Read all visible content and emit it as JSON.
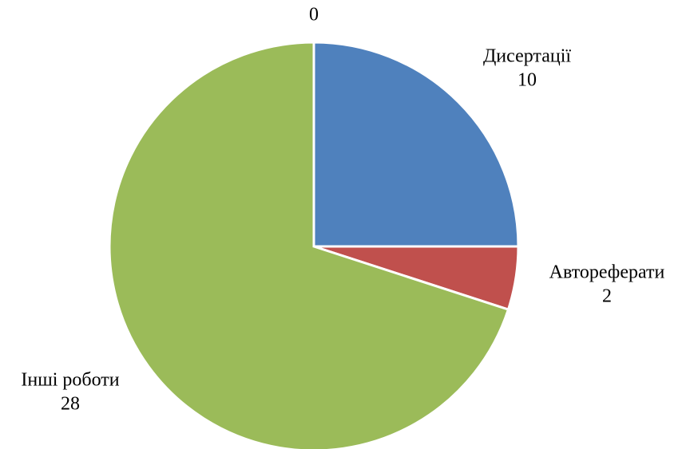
{
  "chart_data": {
    "type": "pie",
    "categories": [
      "Дисертації",
      "Автореферати",
      "Інші роботи",
      null
    ],
    "values": [
      10,
      2,
      28,
      0
    ],
    "colors": [
      "#4f81bd",
      "#c0504d",
      "#9bbb59",
      "#8064a2"
    ]
  }
}
